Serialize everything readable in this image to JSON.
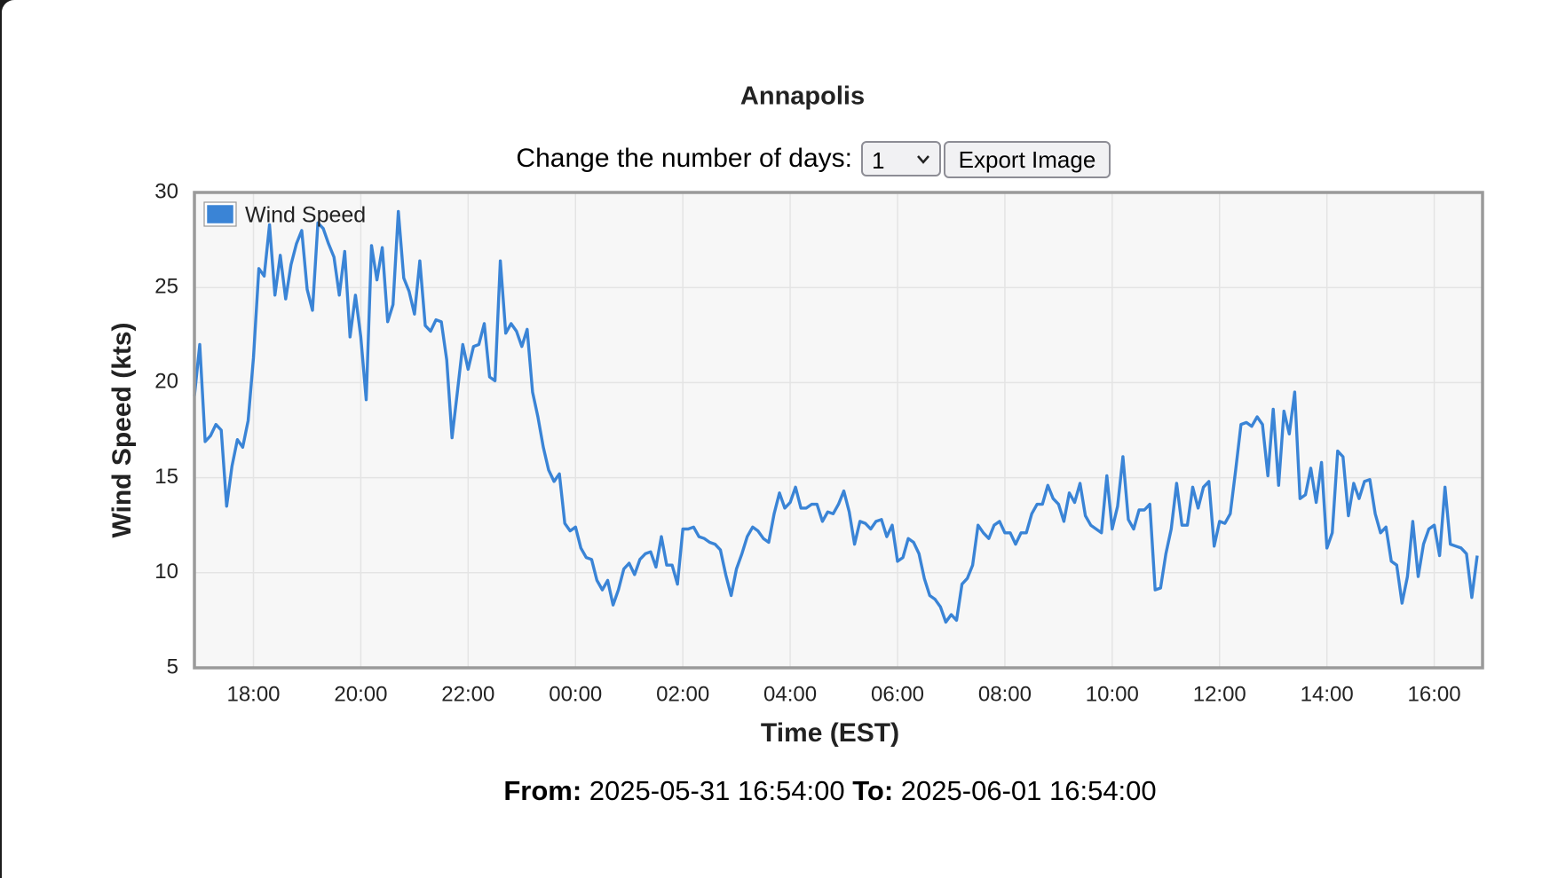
{
  "chart_data": {
    "type": "line",
    "title": "Annapolis",
    "x_label": "Time (EST)",
    "y_label": "Wind Speed (kts)",
    "xlim": [
      16.9,
      40.9
    ],
    "ylim": [
      5,
      30
    ],
    "yticks": [
      5,
      10,
      15,
      20,
      25,
      30
    ],
    "xticks": [
      {
        "value": 18,
        "label": "18:00"
      },
      {
        "value": 20,
        "label": "20:00"
      },
      {
        "value": 22,
        "label": "22:00"
      },
      {
        "value": 24,
        "label": "00:00"
      },
      {
        "value": 26,
        "label": "02:00"
      },
      {
        "value": 28,
        "label": "04:00"
      },
      {
        "value": 30,
        "label": "06:00"
      },
      {
        "value": 32,
        "label": "08:00"
      },
      {
        "value": 34,
        "label": "10:00"
      },
      {
        "value": 36,
        "label": "12:00"
      },
      {
        "value": 38,
        "label": "14:00"
      },
      {
        "value": 40,
        "label": "16:00"
      }
    ],
    "grid": true,
    "legend": "top-left",
    "x": [
      16.9,
      17,
      17.1,
      17.2,
      17.3,
      17.4,
      17.5,
      17.6,
      17.7,
      17.8,
      17.9,
      18,
      18.1,
      18.2,
      18.3,
      18.4,
      18.5,
      18.6,
      18.7,
      18.8,
      18.9,
      19,
      19.1,
      19.2,
      19.3,
      19.4,
      19.5,
      19.6,
      19.7,
      19.8,
      19.9,
      20,
      20.1,
      20.2,
      20.3,
      20.4,
      20.5,
      20.6,
      20.7,
      20.8,
      20.9,
      21,
      21.1,
      21.2,
      21.3,
      21.4,
      21.5,
      21.6,
      21.7,
      21.8,
      21.9,
      22,
      22.1,
      22.2,
      22.3,
      22.4,
      22.5,
      22.6,
      22.7,
      22.8,
      22.9,
      23,
      23.1,
      23.2,
      23.3,
      23.4,
      23.5,
      23.6,
      23.7,
      23.8,
      23.9,
      24,
      24.1,
      24.2,
      24.3,
      24.4,
      24.5,
      24.6,
      24.7,
      24.8,
      24.9,
      25,
      25.1,
      25.2,
      25.3,
      25.4,
      25.5,
      25.6,
      25.7,
      25.8,
      25.9,
      26,
      26.1,
      26.2,
      26.3,
      26.4,
      26.5,
      26.6,
      26.7,
      26.8,
      26.9,
      27,
      27.1,
      27.2,
      27.3,
      27.4,
      27.5,
      27.6,
      27.7,
      27.8,
      27.9,
      28,
      28.1,
      28.2,
      28.3,
      28.4,
      28.5,
      28.6,
      28.7,
      28.8,
      28.9,
      29,
      29.1,
      29.2,
      29.3,
      29.4,
      29.5,
      29.6,
      29.7,
      29.8,
      29.9,
      30,
      30.1,
      30.2,
      30.3,
      30.4,
      30.5,
      30.6,
      30.7,
      30.8,
      30.9,
      31,
      31.1,
      31.2,
      31.3,
      31.4,
      31.5,
      31.6,
      31.7,
      31.8,
      31.9,
      32,
      32.1,
      32.2,
      32.3,
      32.4,
      32.5,
      32.6,
      32.7,
      32.8,
      32.9,
      33,
      33.1,
      33.2,
      33.3,
      33.4,
      33.5,
      33.6,
      33.7,
      33.8,
      33.9,
      34,
      34.1,
      34.2,
      34.3,
      34.4,
      34.5,
      34.6,
      34.7,
      34.8,
      34.9,
      35,
      35.1,
      35.2,
      35.3,
      35.4,
      35.5,
      35.6,
      35.7,
      35.8,
      35.9,
      36,
      36.1,
      36.2,
      36.3,
      36.4,
      36.5,
      36.6,
      36.7,
      36.8,
      36.9,
      37,
      37.1,
      37.2,
      37.3,
      37.4,
      37.5,
      37.6,
      37.7,
      37.8,
      37.9,
      38,
      38.1,
      38.2,
      38.3,
      38.4,
      38.5,
      38.6,
      38.7,
      38.8,
      38.9,
      39,
      39.1,
      39.2,
      39.3,
      39.4,
      39.5,
      39.6,
      39.7,
      39.8,
      39.9,
      40,
      40.1,
      40.2,
      40.3,
      40.4,
      40.5,
      40.6,
      40.7,
      40.8
    ],
    "series": [
      {
        "name": "Wind Speed",
        "color": "#3a84d6",
        "values": [
          19.3,
          22,
          16.9,
          17.2,
          17.8,
          17.5,
          13.5,
          15.6,
          17,
          16.6,
          18,
          21.3,
          26,
          25.6,
          28.3,
          24.6,
          26.7,
          24.4,
          26.2,
          27.3,
          28,
          24.9,
          23.8,
          28.4,
          28.1,
          27.3,
          26.6,
          24.6,
          26.9,
          22.4,
          24.6,
          22.4,
          19.1,
          27.2,
          25.4,
          27.1,
          23.2,
          24.1,
          29,
          25.5,
          24.8,
          23.6,
          26.4,
          23,
          22.7,
          23.3,
          23.2,
          21.2,
          17.1,
          19.5,
          22,
          20.7,
          21.9,
          22,
          23.1,
          20.3,
          20.1,
          26.4,
          22.6,
          23.1,
          22.7,
          21.9,
          22.8,
          19.5,
          18.2,
          16.6,
          15.4,
          14.8,
          15.2,
          12.6,
          12.2,
          12.4,
          11.3,
          10.8,
          10.7,
          9.6,
          9.1,
          9.6,
          8.3,
          9.1,
          10.2,
          10.5,
          9.9,
          10.7,
          11,
          11.1,
          10.3,
          11.9,
          10.4,
          10.4,
          9.4,
          12.3,
          12.3,
          12.4,
          11.9,
          11.8,
          11.6,
          11.5,
          11.2,
          9.9,
          8.8,
          10.2,
          11,
          11.9,
          12.4,
          12.2,
          11.8,
          11.6,
          13.1,
          14.2,
          13.4,
          13.7,
          14.5,
          13.4,
          13.4,
          13.6,
          13.6,
          12.7,
          13.2,
          13.1,
          13.6,
          14.3,
          13.2,
          11.5,
          12.7,
          12.6,
          12.3,
          12.7,
          12.8,
          11.9,
          12.5,
          10.6,
          10.8,
          11.8,
          11.6,
          11,
          9.7,
          8.8,
          8.6,
          8.2,
          7.4,
          7.8,
          7.5,
          9.4,
          9.7,
          10.4,
          12.5,
          12.1,
          11.8,
          12.5,
          12.7,
          12.1,
          12.1,
          11.5,
          12.1,
          12.1,
          13.1,
          13.6,
          13.6,
          14.6,
          13.9,
          13.6,
          12.7,
          14.2,
          13.7,
          14.7,
          13,
          12.5,
          12.3,
          12.1,
          15.1,
          12.3,
          13.5,
          16.1,
          12.8,
          12.3,
          13.3,
          13.3,
          13.6,
          9.1,
          9.2,
          11,
          12.3,
          14.7,
          12.5,
          12.5,
          14.5,
          13.4,
          14.5,
          14.8,
          11.4,
          12.7,
          12.6,
          13.1,
          15.4,
          17.8,
          17.9,
          17.7,
          18.2,
          17.8,
          15.1,
          18.6,
          14.6,
          18.5,
          17.3,
          19.5,
          13.9,
          14.1,
          15.5,
          13.7,
          15.8,
          11.3,
          12.1,
          16.4,
          16.1,
          13,
          14.7,
          13.9,
          14.8,
          14.9,
          13.1,
          12.1,
          12.4,
          10.6,
          10.4,
          8.4,
          9.8,
          12.7,
          9.8,
          11.5,
          12.3,
          12.5,
          10.9,
          14.5,
          11.5,
          11.4,
          11.3,
          11,
          8.7,
          10.9
        ]
      }
    ]
  },
  "controls": {
    "label": "Change the number of days:",
    "days_selected": "1",
    "export_button": "Export Image"
  },
  "range": {
    "from_label": "From:",
    "from": "2025-05-31 16:54:00",
    "to_label": "To:",
    "to": "2025-06-01 16:54:00"
  }
}
